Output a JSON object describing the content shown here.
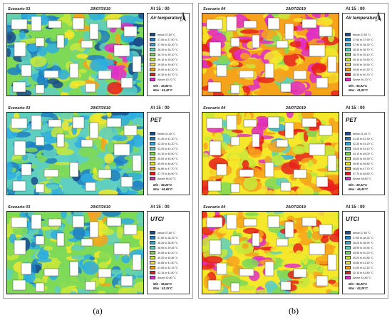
{
  "captions": {
    "left": "(a)",
    "right": "(b)"
  },
  "columns": [
    {
      "id": "a",
      "scenario": "Scenario 03",
      "panels": [
        {
          "variable": "Air temperature",
          "title_style": "small",
          "date": "29/07/2019",
          "time": "At  15 : 00",
          "legend": [
            "below         37,50 °C",
            "37,50 to 37,90 °C",
            "37,90 to 38,30 °C",
            "38,30 to 38,70 °C",
            "38,70 to 39,10 °C",
            "39,10 to 39,50 °C",
            "39,50 to 39,90 °C",
            "39,90 to 40,30 °C",
            "40,30 to 40,70 °C",
            "Above          40,70 °C"
          ],
          "min": "Min : 35,86°C",
          "max": "Max : 41,42°C",
          "map_levels": [
            0.15,
            0.35,
            0.25,
            0.45,
            0.55,
            0.3,
            0.9,
            0.2
          ]
        },
        {
          "variable": "PET",
          "title_style": "big",
          "date": "29/07/2019",
          "time": "At  15 : 00",
          "legend": [
            "below         41,40 °C",
            "41,40 to 42,30 °C",
            "42,30 to 43,20 °C",
            "43,20 to 44,10 °C",
            "44,10 to 45,00 °C",
            "45,00 to 45,90 °C",
            "45,90 to 46,80 °C",
            "46,80 to 47,70 °C",
            "47,70 to 48,60 °C",
            "Above          48,60 °C"
          ],
          "min": "Min : 38,25°C",
          "max": "Max : 46,65°C",
          "map_levels": [
            0.4,
            0.2,
            0.35,
            0.45,
            0.25,
            0.5,
            0.3,
            0.4
          ]
        },
        {
          "variable": "UTCI",
          "title_style": "big",
          "date": "29/07/2019",
          "time": "At  15 : 00",
          "legend": [
            "below         37,60 °C",
            "37,60 to 38,25 °C",
            "38,25 to 38,90 °C",
            "38,90 to 39,55 °C",
            "39,55 to 40,20 °C",
            "40,20 to 40,85 °C",
            "40,85 to 41,50 °C",
            "41,50 to 42,15 °C",
            "42,15 to 42,80 °C",
            "Above          42,80 °C"
          ],
          "min": "Min : 35,54°C",
          "max": "Max : 42,15°C",
          "map_levels": [
            0.45,
            0.3,
            0.4,
            0.5,
            0.3,
            0.55,
            0.35,
            0.45
          ]
        }
      ]
    },
    {
      "id": "b",
      "scenario": "Scenario 04",
      "panels": [
        {
          "variable": "Air temperature",
          "title_style": "small",
          "date": "29/07/2019",
          "time": "At  15 : 00",
          "legend": [
            "below         37,50 °C",
            "37,50 to 37,90 °C",
            "37,90 to 38,30 °C",
            "38,30 to 38,70 °C",
            "38,70 to 39,10 °C",
            "39,10 to 39,50 °C",
            "39,50 to 39,90 °C",
            "39,90 to 40,30 °C",
            "40,30 to 40,70 °C",
            "Above          40,70 °C"
          ],
          "min": "Min : 36,92°C",
          "max": "Max : 41,52°C",
          "map_levels": [
            0.85,
            0.6,
            0.75,
            0.9,
            0.55,
            0.8,
            0.95,
            0.7
          ]
        },
        {
          "variable": "PET",
          "title_style": "big",
          "date": "29/07/2019",
          "time": "At  15 : 00",
          "legend": [
            "below         41,40 °C",
            "41,40 to 42,30 °C",
            "42,30 to 43,20 °C",
            "43,20 to 44,10 °C",
            "44,10 to 45,00 °C",
            "45,00 to 45,90 °C",
            "45,90 to 46,80 °C",
            "46,80 to 47,70 °C",
            "47,70 to 48,60 °C",
            "Above          48,60 °C"
          ],
          "min": "Min : 39,32°C",
          "max": "Max : 46,40°C",
          "map_levels": [
            0.75,
            0.55,
            0.7,
            0.8,
            0.5,
            0.75,
            0.65,
            0.7
          ]
        },
        {
          "variable": "UTCI",
          "title_style": "big",
          "date": "29/07/2019",
          "time": "At  15 : 00",
          "legend": [
            "below         37,60 °C",
            "37,60 to 38,25 °C",
            "38,25 to 38,90 °C",
            "38,90 to 39,55 °C",
            "39,55 to 40,20 °C",
            "40,20 to 40,85 °C",
            "40,85 to 41,50 °C",
            "41,50 to 42,15 °C",
            "42,15 to 42,80 °C",
            "Above          42,80 °C"
          ],
          "min": "Min : 36,28°C",
          "max": "Max : 42,25°C",
          "map_levels": [
            0.75,
            0.55,
            0.65,
            0.8,
            0.5,
            0.7,
            0.6,
            0.7
          ]
        }
      ]
    }
  ],
  "legend_colors": [
    "#1a4e8c",
    "#1f7fc2",
    "#2eaee0",
    "#5ecfc0",
    "#7ed957",
    "#c8e83a",
    "#f5e82a",
    "#f7a21b",
    "#e8211d",
    "#e030c8"
  ]
}
